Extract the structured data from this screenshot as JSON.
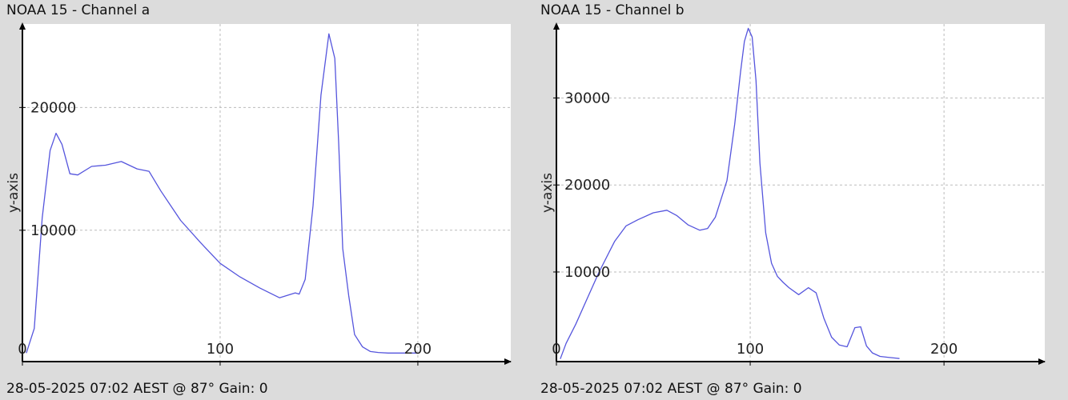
{
  "colors": {
    "background": "#dcdcdc",
    "plot_bg": "#ffffff",
    "line": "#5555dd",
    "grid": "#bbbbbb",
    "axis": "#000000"
  },
  "chart_data": [
    {
      "type": "line",
      "title": "NOAA 15 - Channel a",
      "footer": "28-05-2025 07:02 AEST @ 87° Gain: 0",
      "xlabel": "",
      "ylabel": "y-axis",
      "xlim": [
        0,
        247
      ],
      "ylim": [
        -700,
        26800
      ],
      "xticks": [
        0,
        100,
        200
      ],
      "xtick_labels": [
        "0",
        "100",
        "200"
      ],
      "yticks": [
        10000,
        20000
      ],
      "ytick_labels": [
        "10000",
        "20000"
      ],
      "grid": true,
      "series": [
        {
          "x": [
            2,
            6,
            10,
            14,
            17,
            20,
            24,
            28,
            35,
            42,
            50,
            58,
            64,
            70,
            80,
            90,
            100,
            110,
            120,
            130,
            138,
            140,
            143,
            147,
            151,
            155,
            158,
            160,
            162,
            165,
            168,
            172,
            176,
            180,
            185,
            190,
            195,
            200
          ],
          "y": [
            0,
            2000,
            11000,
            16500,
            17900,
            17000,
            14600,
            14500,
            15200,
            15300,
            15600,
            15000,
            14800,
            13200,
            10800,
            9000,
            7300,
            6200,
            5300,
            4500,
            4900,
            4800,
            6000,
            12000,
            21000,
            26000,
            24000,
            17000,
            8500,
            4700,
            1500,
            500,
            120,
            40,
            0,
            0,
            0,
            0
          ]
        }
      ]
    },
    {
      "type": "line",
      "title": "NOAA 15 - Channel b",
      "footer": "28-05-2025 07:02 AEST @ 87° Gain: 0",
      "xlabel": "",
      "ylabel": "y-axis",
      "xlim": [
        0,
        252
      ],
      "ylim": [
        -300,
        38500
      ],
      "xticks": [
        0,
        100,
        200
      ],
      "xtick_labels": [
        "0",
        "100",
        "200"
      ],
      "yticks": [
        10000,
        20000,
        30000
      ],
      "ytick_labels": [
        "10000",
        "20000",
        "30000"
      ],
      "grid": true,
      "series": [
        {
          "x": [
            2,
            5,
            10,
            16,
            22,
            30,
            36,
            42,
            50,
            57,
            62,
            68,
            74,
            78,
            82,
            88,
            92,
            95,
            97,
            99,
            101,
            103,
            105,
            108,
            111,
            114,
            117,
            120,
            125,
            130,
            134,
            138,
            142,
            146,
            150,
            154,
            157,
            160,
            163,
            167,
            171,
            175,
            177
          ],
          "y": [
            0,
            1800,
            4000,
            7000,
            10000,
            13500,
            15300,
            16000,
            16800,
            17100,
            16500,
            15400,
            14800,
            15000,
            16300,
            20500,
            27000,
            33000,
            36500,
            38000,
            37000,
            32000,
            22500,
            14500,
            11000,
            9500,
            8800,
            8200,
            7400,
            8200,
            7600,
            4700,
            2500,
            1600,
            1400,
            3600,
            3700,
            1500,
            700,
            300,
            200,
            100,
            50
          ]
        }
      ]
    }
  ]
}
